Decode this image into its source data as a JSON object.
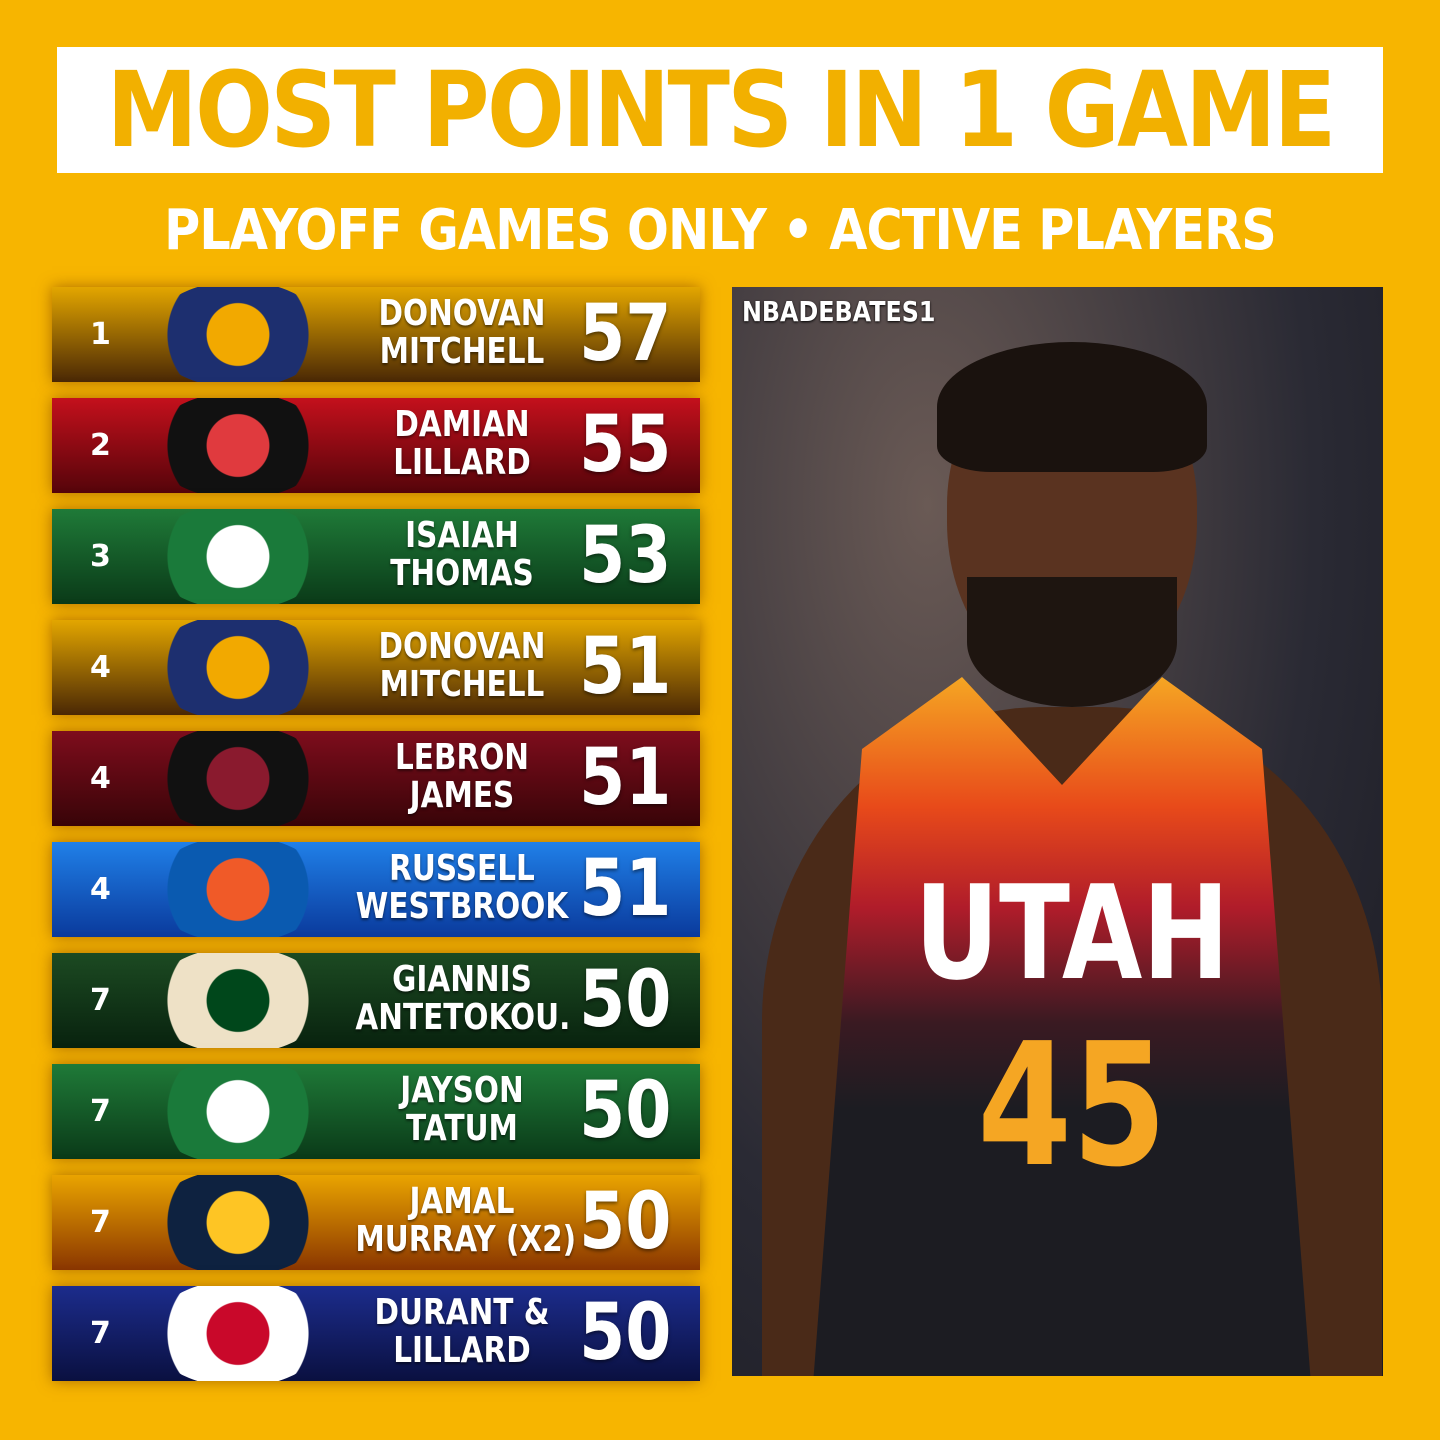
{
  "title": "MOST POINTS IN 1 GAME",
  "subtitle": "PLAYOFF GAMES ONLY • ACTIVE PLAYERS",
  "rows": [
    {
      "rank": "1",
      "line1": "DONOVAN",
      "line2": "MITCHELL",
      "points": "57",
      "team": "jazz",
      "bg": [
        "#e3a600",
        "#4a2805"
      ],
      "logo": [
        "#1d2f6f",
        "#f2a900"
      ]
    },
    {
      "rank": "2",
      "line1": "DAMIAN",
      "line2": "LILLARD",
      "points": "55",
      "team": "blazers",
      "bg": [
        "#c4101c",
        "#55040a"
      ],
      "logo": [
        "#111111",
        "#e03a3e"
      ]
    },
    {
      "rank": "3",
      "line1": "ISAIAH",
      "line2": "THOMAS",
      "points": "53",
      "team": "celtics",
      "bg": [
        "#1f7a38",
        "#0a3a18"
      ],
      "logo": [
        "#1a7a3a",
        "#ffffff"
      ]
    },
    {
      "rank": "4",
      "line1": "DONOVAN",
      "line2": "MITCHELL",
      "points": "51",
      "team": "jazz",
      "bg": [
        "#e3a600",
        "#4a2805"
      ],
      "logo": [
        "#1d2f6f",
        "#f2a900"
      ]
    },
    {
      "rank": "4",
      "line1": "LEBRON",
      "line2": "JAMES",
      "points": "51",
      "team": "cavaliers",
      "bg": [
        "#7e0d1c",
        "#380408"
      ],
      "logo": [
        "#111111",
        "#8a1a2e"
      ]
    },
    {
      "rank": "4",
      "line1": "RUSSELL",
      "line2": "WESTBROOK",
      "points": "51",
      "team": "thunder",
      "bg": [
        "#2080e8",
        "#0a3a9c"
      ],
      "logo": [
        "#0a5ab0",
        "#f05a28"
      ]
    },
    {
      "rank": "7",
      "line1": "GIANNIS",
      "line2": "ANTETOKOU.",
      "points": "50",
      "team": "bucks",
      "bg": [
        "#1c4a22",
        "#08220e"
      ],
      "logo": [
        "#eee1c6",
        "#00471b"
      ]
    },
    {
      "rank": "7",
      "line1": "JAYSON",
      "line2": "TATUM",
      "points": "50",
      "team": "celtics",
      "bg": [
        "#1f7a38",
        "#0a3a18"
      ],
      "logo": [
        "#1a7a3a",
        "#ffffff"
      ]
    },
    {
      "rank": "7",
      "line1": "JAMAL",
      "line2": "MURRAY (X2)",
      "points": "50",
      "team": "nuggets",
      "bg": [
        "#eaa400",
        "#8a3600"
      ],
      "logo": [
        "#0e2240",
        "#fec524"
      ]
    },
    {
      "rank": "7",
      "line1": "DURANT &",
      "line2": "LILLARD",
      "points": "50",
      "team": "nba",
      "bg": [
        "#1c2c8c",
        "#0a1040"
      ],
      "logo": [
        "#ffffff",
        "#c9082a"
      ]
    }
  ],
  "photo": {
    "watermark": "NBADEBATES1",
    "jersey_text": "UTAH",
    "jersey_number": "45"
  }
}
